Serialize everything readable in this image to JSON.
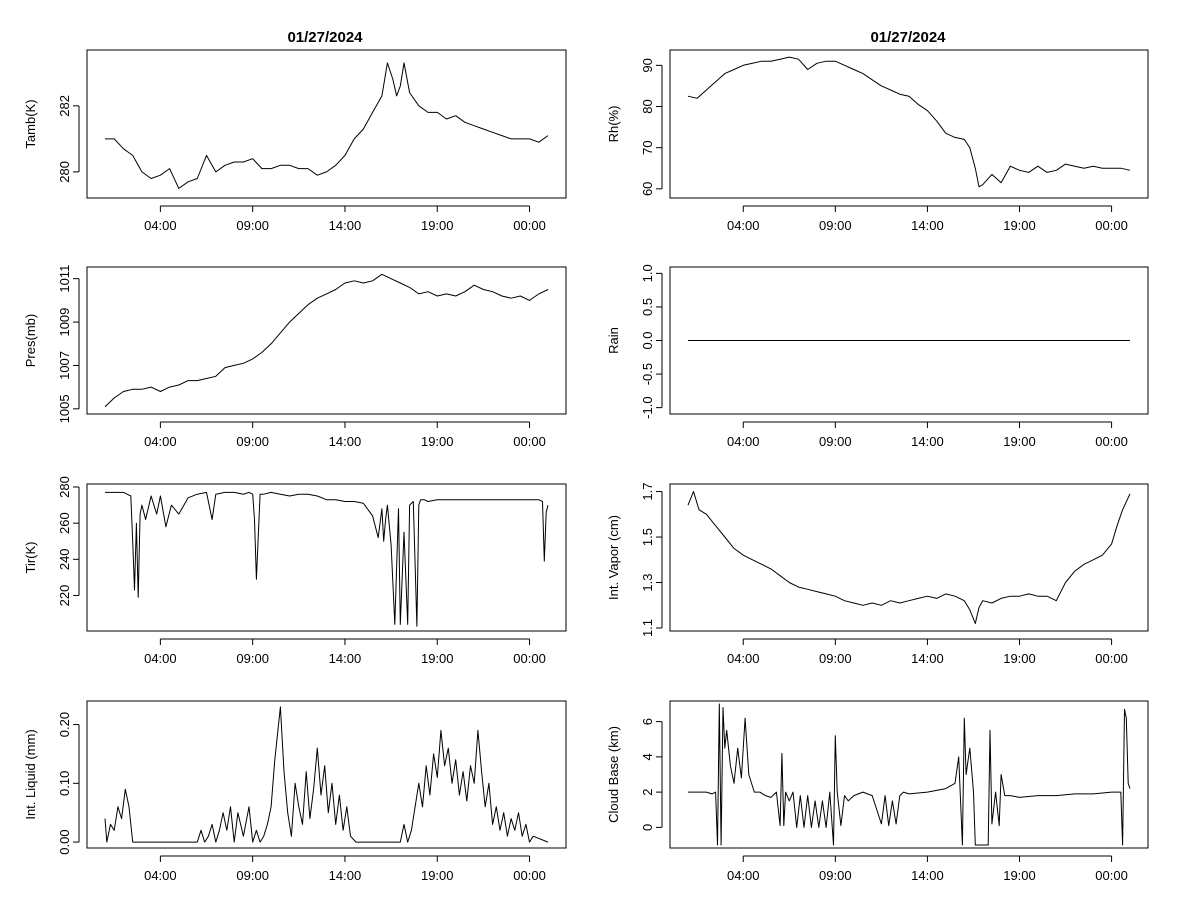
{
  "titles": {
    "left": "01/27/2024",
    "right": "01/27/2024"
  },
  "chart_data": [
    {
      "type": "line",
      "id": "tamb",
      "ylabel": "Tamb(K)",
      "xlim": [
        0,
        24
      ],
      "ylim": [
        279.3,
        283.6
      ],
      "xticks": [
        3,
        8,
        13,
        18,
        23
      ],
      "xtick_labels": [
        "04:00",
        "09:00",
        "14:00",
        "19:00",
        "00:00"
      ],
      "yticks": [
        280,
        282
      ],
      "ytick_labels": [
        "280",
        "282"
      ],
      "x": [
        0,
        0.5,
        1,
        1.5,
        2,
        2.5,
        3,
        3.5,
        4,
        4.5,
        5,
        5.5,
        6,
        6.5,
        7,
        7.5,
        8,
        8.5,
        9,
        9.5,
        10,
        10.5,
        11,
        11.5,
        12,
        12.5,
        13,
        13.5,
        14,
        14.5,
        15,
        15.3,
        15.6,
        15.8,
        16,
        16.2,
        16.5,
        17,
        17.5,
        18,
        18.5,
        19,
        19.5,
        20,
        20.5,
        21,
        21.5,
        22,
        22.5,
        23,
        23.5,
        24
      ],
      "values": [
        281.0,
        281.0,
        280.7,
        280.5,
        280.0,
        279.8,
        279.9,
        280.1,
        279.5,
        279.7,
        279.8,
        280.5,
        280.0,
        280.2,
        280.3,
        280.3,
        280.4,
        280.1,
        280.1,
        280.2,
        280.2,
        280.1,
        280.1,
        279.9,
        280.0,
        280.2,
        280.5,
        281.0,
        281.3,
        281.8,
        282.3,
        283.3,
        282.8,
        282.3,
        282.6,
        283.3,
        282.4,
        282.0,
        281.8,
        281.8,
        281.6,
        281.7,
        281.5,
        281.4,
        281.3,
        281.2,
        281.1,
        281.0,
        281.0,
        281.0,
        280.9,
        281.1
      ]
    },
    {
      "type": "line",
      "id": "rh",
      "ylabel": "Rh(%)",
      "xlim": [
        0,
        24
      ],
      "ylim": [
        58.5,
        93
      ],
      "xticks": [
        3,
        8,
        13,
        18,
        23
      ],
      "xtick_labels": [
        "04:00",
        "09:00",
        "14:00",
        "19:00",
        "00:00"
      ],
      "yticks": [
        60,
        70,
        80,
        90
      ],
      "ytick_labels": [
        "60",
        "70",
        "80",
        "90"
      ],
      "x": [
        0,
        0.5,
        1,
        1.5,
        2,
        2.5,
        3,
        3.5,
        4,
        4.5,
        5,
        5.5,
        6,
        6.5,
        7,
        7.5,
        8,
        8.5,
        9,
        9.5,
        10,
        10.5,
        11,
        11.5,
        12,
        12.5,
        13,
        13.5,
        14,
        14.5,
        15,
        15.3,
        15.6,
        15.8,
        16,
        16.5,
        17,
        17.5,
        18,
        18.5,
        19,
        19.5,
        20,
        20.5,
        21,
        21.5,
        22,
        22.5,
        23,
        23.5,
        24
      ],
      "values": [
        82.5,
        82.0,
        84.0,
        86.0,
        88.0,
        89.0,
        90.0,
        90.5,
        91.0,
        91.0,
        91.5,
        92.0,
        91.5,
        89.0,
        90.5,
        91.0,
        91.0,
        90.0,
        89.0,
        88.0,
        86.5,
        85.0,
        84.0,
        83.0,
        82.5,
        80.5,
        79.0,
        76.5,
        73.5,
        72.5,
        72.0,
        70.0,
        65.0,
        60.5,
        61.0,
        63.5,
        61.5,
        65.5,
        64.5,
        64.0,
        65.5,
        64.0,
        64.5,
        66.0,
        65.5,
        65.0,
        65.5,
        65.0,
        65.0,
        65.0,
        64.5
      ]
    },
    {
      "type": "line",
      "id": "pres",
      "ylabel": "Pres(mb)",
      "xlim": [
        0,
        24
      ],
      "ylim": [
        1004.9,
        1011.4
      ],
      "xticks": [
        3,
        8,
        13,
        18,
        23
      ],
      "xtick_labels": [
        "04:00",
        "09:00",
        "14:00",
        "19:00",
        "00:00"
      ],
      "yticks": [
        1005,
        1007,
        1009,
        1011
      ],
      "ytick_labels": [
        "1005",
        "1007",
        "1009",
        "1011"
      ],
      "x": [
        0,
        0.5,
        1,
        1.5,
        2,
        2.5,
        3,
        3.5,
        4,
        4.5,
        5,
        5.5,
        6,
        6.5,
        7,
        7.5,
        8,
        8.5,
        9,
        9.5,
        10,
        10.5,
        11,
        11.5,
        12,
        12.5,
        13,
        13.5,
        14,
        14.5,
        15,
        15.5,
        16,
        16.5,
        17,
        17.5,
        18,
        18.5,
        19,
        19.5,
        20,
        20.5,
        21,
        21.5,
        22,
        22.5,
        23,
        23.5,
        24
      ],
      "values": [
        1005.1,
        1005.5,
        1005.8,
        1005.9,
        1005.9,
        1006.0,
        1005.8,
        1006.0,
        1006.1,
        1006.3,
        1006.3,
        1006.4,
        1006.5,
        1006.9,
        1007.0,
        1007.1,
        1007.3,
        1007.6,
        1008.0,
        1008.5,
        1009.0,
        1009.4,
        1009.8,
        1010.1,
        1010.3,
        1010.5,
        1010.8,
        1010.9,
        1010.8,
        1010.9,
        1011.2,
        1011.0,
        1010.8,
        1010.6,
        1010.3,
        1010.4,
        1010.2,
        1010.3,
        1010.2,
        1010.4,
        1010.7,
        1010.5,
        1010.4,
        1010.2,
        1010.1,
        1010.2,
        1010.0,
        1010.3,
        1010.5
      ]
    },
    {
      "type": "line",
      "id": "rain",
      "ylabel": "Rain",
      "xlim": [
        0,
        24
      ],
      "ylim": [
        -1.05,
        1.05
      ],
      "xticks": [
        3,
        8,
        13,
        18,
        23
      ],
      "xtick_labels": [
        "04:00",
        "09:00",
        "14:00",
        "19:00",
        "00:00"
      ],
      "yticks": [
        -1.0,
        -0.5,
        0.0,
        0.5,
        1.0
      ],
      "ytick_labels": [
        "-1.0",
        "-0.5",
        "0.0",
        "0.5",
        "1.0"
      ],
      "x": [
        0,
        24
      ],
      "values": [
        0,
        0
      ]
    },
    {
      "type": "line",
      "id": "tir",
      "ylabel": "Tir(K)",
      "xlim": [
        0,
        24
      ],
      "ylim": [
        202,
        280
      ],
      "xticks": [
        3,
        8,
        13,
        18,
        23
      ],
      "xtick_labels": [
        "04:00",
        "09:00",
        "14:00",
        "19:00",
        "00:00"
      ],
      "yticks": [
        220,
        240,
        260,
        280
      ],
      "ytick_labels": [
        "220",
        "240",
        "260",
        "280"
      ],
      "x": [
        0,
        1.0,
        1.4,
        1.5,
        1.6,
        1.7,
        1.8,
        1.9,
        2.0,
        2.2,
        2.5,
        2.8,
        3.0,
        3.3,
        3.6,
        4.0,
        4.5,
        5.0,
        5.5,
        5.8,
        6.0,
        6.5,
        7.0,
        7.5,
        7.8,
        8.0,
        8.1,
        8.2,
        8.4,
        8.6,
        9.0,
        9.5,
        10.0,
        10.5,
        11.0,
        11.5,
        12.0,
        12.5,
        13.0,
        13.5,
        14.0,
        14.5,
        14.8,
        15.0,
        15.1,
        15.2,
        15.3,
        15.5,
        15.7,
        15.9,
        16.0,
        16.2,
        16.4,
        16.5,
        16.7,
        16.9,
        17.0,
        17.1,
        17.3,
        17.5,
        18.0,
        19.0,
        20.0,
        21.0,
        22.0,
        23.0,
        23.5,
        23.7,
        23.8,
        23.9,
        24.0
      ],
      "values": [
        277,
        277,
        275,
        250,
        223,
        260,
        219,
        265,
        270,
        262,
        275,
        265,
        275,
        258,
        270,
        265,
        274,
        276,
        277,
        262,
        276,
        277,
        277,
        276,
        277,
        276,
        262,
        229,
        276,
        276,
        277,
        276,
        275,
        276,
        276,
        275,
        273,
        273,
        272,
        272,
        271,
        264,
        252,
        268,
        250,
        262,
        270,
        248,
        204,
        268,
        204,
        255,
        204,
        270,
        272,
        203,
        270,
        273,
        273,
        272,
        273,
        273,
        273,
        273,
        273,
        273,
        273,
        272,
        239,
        266,
        270
      ]
    },
    {
      "type": "line",
      "id": "vapor",
      "ylabel": "Int. Vapor (cm)",
      "xlim": [
        0,
        24
      ],
      "ylim": [
        1.1,
        1.72
      ],
      "xticks": [
        3,
        8,
        13,
        18,
        23
      ],
      "xtick_labels": [
        "04:00",
        "09:00",
        "14:00",
        "19:00",
        "00:00"
      ],
      "yticks": [
        1.1,
        1.3,
        1.5,
        1.7
      ],
      "ytick_labels": [
        "1.1",
        "1.3",
        "1.5",
        "1.7"
      ],
      "x": [
        0,
        0.3,
        0.6,
        1.0,
        1.5,
        2.0,
        2.5,
        3.0,
        3.5,
        4.0,
        4.5,
        5.0,
        5.5,
        6.0,
        6.5,
        7.0,
        7.5,
        8.0,
        8.5,
        9.0,
        9.5,
        10.0,
        10.5,
        11.0,
        11.5,
        12.0,
        12.5,
        13.0,
        13.5,
        14.0,
        14.5,
        15.0,
        15.3,
        15.6,
        15.8,
        16.0,
        16.5,
        17.0,
        17.5,
        18.0,
        18.5,
        19.0,
        19.5,
        20.0,
        20.5,
        21.0,
        21.5,
        22.0,
        22.5,
        23.0,
        23.3,
        23.6,
        24.0
      ],
      "values": [
        1.64,
        1.7,
        1.62,
        1.6,
        1.55,
        1.5,
        1.45,
        1.42,
        1.4,
        1.38,
        1.36,
        1.33,
        1.3,
        1.28,
        1.27,
        1.26,
        1.25,
        1.24,
        1.22,
        1.21,
        1.2,
        1.21,
        1.2,
        1.22,
        1.21,
        1.22,
        1.23,
        1.24,
        1.23,
        1.25,
        1.24,
        1.22,
        1.18,
        1.12,
        1.19,
        1.22,
        1.21,
        1.23,
        1.24,
        1.24,
        1.25,
        1.24,
        1.24,
        1.22,
        1.3,
        1.35,
        1.38,
        1.4,
        1.42,
        1.47,
        1.55,
        1.62,
        1.69
      ]
    },
    {
      "type": "line",
      "id": "liquid",
      "ylabel": "Int. Liquid (mm)",
      "xlim": [
        0,
        24
      ],
      "ylim": [
        -0.005,
        0.235
      ],
      "xticks": [
        3,
        8,
        13,
        18,
        23
      ],
      "xtick_labels": [
        "04:00",
        "09:00",
        "14:00",
        "19:00",
        "00:00"
      ],
      "yticks": [
        0.0,
        0.1,
        0.2
      ],
      "ytick_labels": [
        "0.00",
        "0.10",
        "0.20"
      ],
      "x": [
        0,
        0.1,
        0.3,
        0.5,
        0.7,
        0.9,
        1.1,
        1.3,
        1.5,
        2.0,
        3.0,
        4.0,
        5.0,
        5.2,
        5.4,
        5.6,
        5.8,
        6.0,
        6.2,
        6.4,
        6.6,
        6.8,
        7.0,
        7.2,
        7.5,
        7.8,
        8.0,
        8.2,
        8.4,
        8.6,
        8.8,
        9.0,
        9.2,
        9.5,
        9.7,
        9.9,
        10.1,
        10.3,
        10.5,
        10.7,
        10.9,
        11.1,
        11.3,
        11.5,
        11.7,
        11.9,
        12.1,
        12.3,
        12.5,
        12.7,
        12.9,
        13.1,
        13.3,
        13.6,
        14,
        15,
        16,
        16.2,
        16.4,
        16.6,
        16.8,
        17.0,
        17.2,
        17.4,
        17.6,
        17.8,
        18.0,
        18.2,
        18.4,
        18.6,
        18.8,
        19.0,
        19.2,
        19.4,
        19.6,
        19.8,
        20.0,
        20.2,
        20.4,
        20.6,
        20.8,
        21.0,
        21.2,
        21.4,
        21.6,
        21.8,
        22.0,
        22.2,
        22.4,
        22.6,
        22.8,
        23.0,
        23.2,
        24
      ],
      "values": [
        0.04,
        0.0,
        0.03,
        0.02,
        0.06,
        0.04,
        0.09,
        0.06,
        0.0,
        0.0,
        0.0,
        0.0,
        0.0,
        0.02,
        0.0,
        0.01,
        0.03,
        0.0,
        0.02,
        0.05,
        0.02,
        0.06,
        0.0,
        0.05,
        0.01,
        0.06,
        0.0,
        0.02,
        0.0,
        0.01,
        0.03,
        0.06,
        0.14,
        0.23,
        0.12,
        0.05,
        0.01,
        0.1,
        0.06,
        0.03,
        0.12,
        0.04,
        0.09,
        0.16,
        0.08,
        0.13,
        0.05,
        0.1,
        0.03,
        0.08,
        0.02,
        0.06,
        0.01,
        0.0,
        0.0,
        0.0,
        0.0,
        0.03,
        0.0,
        0.02,
        0.06,
        0.1,
        0.06,
        0.13,
        0.08,
        0.15,
        0.11,
        0.19,
        0.13,
        0.16,
        0.1,
        0.14,
        0.08,
        0.12,
        0.07,
        0.13,
        0.1,
        0.19,
        0.12,
        0.06,
        0.1,
        0.03,
        0.06,
        0.02,
        0.05,
        0.01,
        0.04,
        0.02,
        0.05,
        0.01,
        0.03,
        0.0,
        0.01,
        0.0
      ]
    },
    {
      "type": "line",
      "id": "cloudbase",
      "ylabel": "Cloud Base (km)",
      "xlim": [
        0,
        24
      ],
      "ylim": [
        -1,
        7
      ],
      "xticks": [
        3,
        8,
        13,
        18,
        23
      ],
      "xtick_labels": [
        "04:00",
        "09:00",
        "14:00",
        "19:00",
        "00:00"
      ],
      "yticks": [
        0,
        2,
        4,
        6
      ],
      "ytick_labels": [
        "0",
        "2",
        "4",
        "6"
      ],
      "x": [
        0,
        1.0,
        1.3,
        1.5,
        1.6,
        1.7,
        1.8,
        1.9,
        2.0,
        2.1,
        2.3,
        2.5,
        2.7,
        2.9,
        3.1,
        3.3,
        3.6,
        3.9,
        4.2,
        4.5,
        4.8,
        5.0,
        5.1,
        5.2,
        5.3,
        5.5,
        5.7,
        5.9,
        6.1,
        6.3,
        6.5,
        6.7,
        6.9,
        7.1,
        7.3,
        7.5,
        7.7,
        7.9,
        8.0,
        8.1,
        8.3,
        8.5,
        8.7,
        9.0,
        9.5,
        10.0,
        10.5,
        10.7,
        10.9,
        11.1,
        11.3,
        11.5,
        11.7,
        12.0,
        13.0,
        14.0,
        14.5,
        14.7,
        14.9,
        15.0,
        15.1,
        15.3,
        15.5,
        15.6,
        15.7,
        15.8,
        16.0,
        16.2,
        16.3,
        16.4,
        16.5,
        16.7,
        16.9,
        17.0,
        17.2,
        17.5,
        18.0,
        19.0,
        20.0,
        21.0,
        22.0,
        23.0,
        23.5,
        23.6,
        23.7,
        23.8,
        23.9,
        24.0
      ],
      "values": [
        2.0,
        2.0,
        1.9,
        2.0,
        -1.0,
        7.0,
        -1.0,
        6.8,
        4.5,
        5.5,
        3.5,
        2.5,
        4.5,
        2.8,
        6.2,
        3.0,
        2.0,
        2.0,
        1.8,
        1.7,
        2.0,
        0.1,
        4.2,
        0.1,
        2.0,
        1.5,
        2.0,
        0.0,
        1.8,
        0.0,
        1.8,
        0.0,
        1.5,
        0.0,
        1.5,
        0.0,
        2.0,
        -1.0,
        5.2,
        2.0,
        0.1,
        1.8,
        1.5,
        1.8,
        2.0,
        1.8,
        0.2,
        1.8,
        0.1,
        1.5,
        0.2,
        1.8,
        2.0,
        1.9,
        2.0,
        2.2,
        2.5,
        4.0,
        -1.0,
        6.2,
        3.0,
        4.5,
        2.0,
        -1.0,
        -1.0,
        -1.0,
        -1.0,
        -1.0,
        -1.0,
        5.5,
        0.2,
        2.0,
        0.1,
        3.0,
        1.8,
        1.8,
        1.7,
        1.8,
        1.8,
        1.9,
        1.9,
        2.0,
        2.0,
        -1.0,
        6.7,
        6.2,
        2.5,
        2.2
      ]
    }
  ]
}
